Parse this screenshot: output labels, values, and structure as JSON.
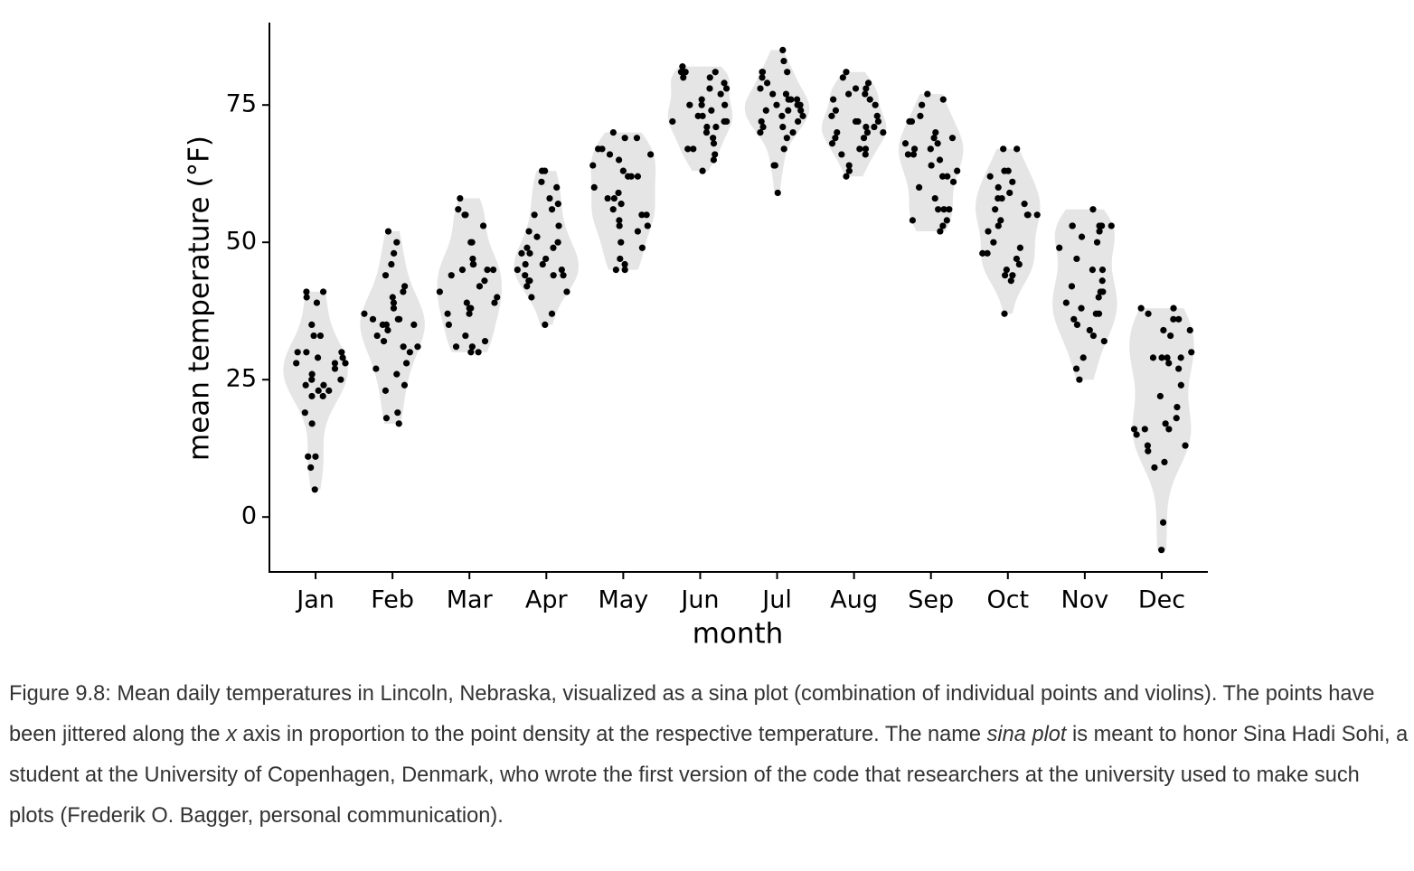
{
  "chart_data": {
    "type": "sina",
    "ylabel": "mean temperature (°F)",
    "xlabel": "month",
    "categories": [
      "Jan",
      "Feb",
      "Mar",
      "Apr",
      "May",
      "Jun",
      "Jul",
      "Aug",
      "Sep",
      "Oct",
      "Nov",
      "Dec"
    ],
    "values": [
      [
        41,
        41,
        40,
        39,
        35,
        33,
        33,
        30,
        30,
        29,
        29,
        28,
        28,
        28,
        27,
        26,
        25,
        25,
        24,
        24,
        23,
        23,
        22,
        22,
        19,
        17,
        11,
        11,
        9,
        5,
        30
      ],
      [
        52,
        50,
        48,
        46,
        44,
        42,
        41,
        40,
        39,
        38,
        37,
        36,
        36,
        35,
        35,
        35,
        34,
        33,
        31,
        31,
        30,
        28,
        27,
        26,
        24,
        23,
        19,
        18,
        17,
        36,
        32
      ],
      [
        58,
        56,
        55,
        55,
        53,
        50,
        50,
        47,
        46,
        46,
        45,
        45,
        45,
        44,
        43,
        42,
        40,
        39,
        39,
        38,
        38,
        37,
        37,
        35,
        33,
        32,
        31,
        31,
        30,
        30,
        41
      ],
      [
        63,
        63,
        61,
        60,
        58,
        57,
        56,
        55,
        53,
        52,
        51,
        50,
        49,
        49,
        48,
        48,
        47,
        46,
        46,
        45,
        44,
        44,
        44,
        43,
        43,
        42,
        41,
        40,
        37,
        35,
        45
      ],
      [
        70,
        69,
        69,
        67,
        67,
        66,
        66,
        65,
        64,
        63,
        62,
        62,
        62,
        60,
        59,
        58,
        58,
        57,
        56,
        55,
        55,
        54,
        53,
        53,
        52,
        50,
        49,
        47,
        46,
        45,
        45
      ],
      [
        82,
        81,
        81,
        81,
        81,
        80,
        80,
        79,
        78,
        78,
        77,
        76,
        75,
        75,
        75,
        74,
        73,
        73,
        72,
        72,
        72,
        71,
        71,
        70,
        69,
        68,
        67,
        67,
        66,
        65,
        63
      ],
      [
        85,
        83,
        81,
        81,
        81,
        80,
        79,
        78,
        77,
        77,
        76,
        76,
        76,
        75,
        75,
        75,
        74,
        74,
        74,
        73,
        73,
        72,
        72,
        71,
        71,
        70,
        70,
        69,
        67,
        64,
        64,
        59
      ],
      [
        81,
        80,
        79,
        78,
        78,
        77,
        77,
        76,
        76,
        75,
        74,
        73,
        73,
        72,
        72,
        72,
        71,
        71,
        70,
        70,
        70,
        69,
        69,
        68,
        67,
        67,
        66,
        66,
        64,
        63,
        62
      ],
      [
        77,
        76,
        75,
        73,
        72,
        72,
        70,
        69,
        69,
        68,
        68,
        67,
        67,
        66,
        66,
        65,
        64,
        63,
        62,
        62,
        61,
        60,
        58,
        56,
        56,
        56,
        54,
        54,
        53,
        52
      ],
      [
        67,
        67,
        63,
        63,
        62,
        61,
        60,
        59,
        58,
        58,
        57,
        56,
        55,
        55,
        55,
        54,
        53,
        52,
        50,
        49,
        48,
        48,
        47,
        46,
        45,
        44,
        44,
        43,
        37
      ],
      [
        56,
        53,
        53,
        53,
        53,
        53,
        52,
        51,
        50,
        49,
        47,
        45,
        45,
        43,
        42,
        41,
        41,
        40,
        39,
        38,
        37,
        37,
        36,
        35,
        34,
        33,
        32,
        29,
        27,
        25
      ],
      [
        38,
        38,
        37,
        36,
        36,
        34,
        34,
        33,
        30,
        29,
        29,
        29,
        29,
        28,
        27,
        24,
        22,
        20,
        18,
        17,
        16,
        16,
        16,
        15,
        13,
        13,
        12,
        10,
        9,
        -1,
        -6
      ]
    ],
    "color": "#000000",
    "violin_color": "#e5e5e5",
    "ylim": [
      -10,
      90
    ],
    "yticks": [
      0,
      25,
      50,
      75
    ]
  },
  "caption": [
    "Figure 9.8: Mean daily temperatures in Lincoln, Nebraska, visualized as a sina plot (combination of individual points and violins). The points have been jittered along the ",
    "x",
    " axis in proportion to the point density at the respective temperature. The name ",
    "sina plot",
    " is meant to honor Sina Hadi Sohi, a student at the University of Copenhagen, Denmark, who wrote the first version of the code that researchers at the university used to make such plots (Frederik O. Bagger, personal communication)."
  ]
}
